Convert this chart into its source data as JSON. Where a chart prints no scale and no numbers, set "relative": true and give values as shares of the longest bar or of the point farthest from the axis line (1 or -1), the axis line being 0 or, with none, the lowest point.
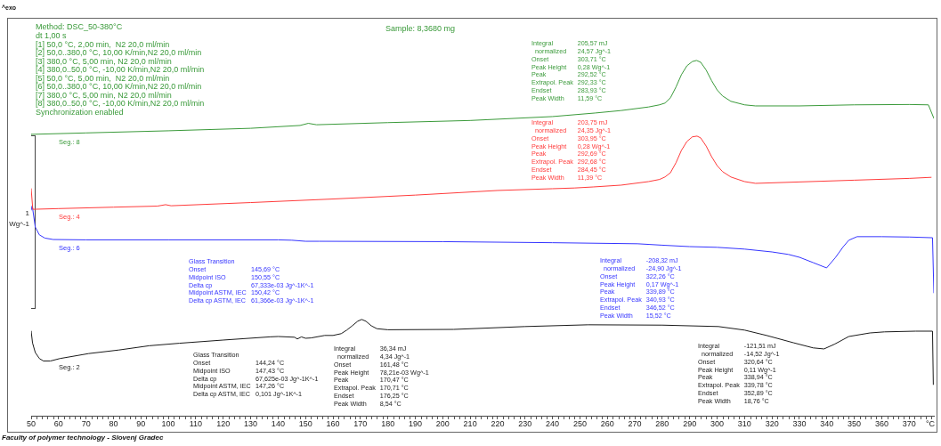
{
  "chart_data": {
    "type": "line",
    "relative": true,
    "title": "Sample: 8,3680 mg",
    "subtitle": "Method: DSC_50-380°C\ndt 1,00 s\n[1] 50,0 °C, 2,00 min,  N2 20,0 ml/min\n[2] 50,0..380,0 °C, 10,00 K/min,N2 20,0 ml/min\n[3] 380,0 °C, 5,00 min, N2 20,0 ml/min\n[4] 380,0..50,0 °C, -10,00 K/min,N2 20,0 ml/min\n[5] 50,0 °C, 5,00 min,  N2 20,0 ml/min\n[6] 50,0..380,0 °C, 10,00 K/min,N2 20,0 ml/min\n[7] 380,0 °C, 5,00 min, N2 20,0 ml/min\n[8] 380,0..50,0 °C, -10,00 K/min,N2 20,0 ml/min\nSynchronization enabled",
    "ylabel": "1\nWg^-1",
    "xlabel": "°C",
    "xlim": [
      50,
      379
    ],
    "xticks": [
      50,
      {
        "value": 52,
        "label": null
      },
      {
        "value": 54,
        "label": null
      },
      {
        "value": 56,
        "label": null
      },
      {
        "value": 58,
        "label": null
      },
      60,
      {
        "value": 62,
        "label": null
      },
      {
        "value": 64,
        "label": null
      },
      {
        "value": 66,
        "label": null
      },
      {
        "value": 68,
        "label": null
      },
      70,
      {
        "value": 72,
        "label": null
      },
      {
        "value": 74,
        "label": null
      },
      {
        "value": 76,
        "label": null
      },
      {
        "value": 78,
        "label": null
      },
      80,
      {
        "value": 82,
        "label": null
      },
      {
        "value": 84,
        "label": null
      },
      {
        "value": 86,
        "label": null
      },
      {
        "value": 88,
        "label": null
      },
      90,
      {
        "value": 92,
        "label": null
      },
      {
        "value": 94,
        "label": null
      },
      {
        "value": 96,
        "label": null
      },
      {
        "value": 98,
        "label": null
      },
      100,
      {
        "value": 102,
        "label": null
      },
      {
        "value": 104,
        "label": null
      },
      {
        "value": 106,
        "label": null
      },
      {
        "value": 108,
        "label": null
      },
      110,
      {
        "value": 112,
        "label": null
      },
      {
        "value": 114,
        "label": null
      },
      {
        "value": 116,
        "label": null
      },
      {
        "value": 118,
        "label": null
      },
      120,
      {
        "value": 122,
        "label": null
      },
      {
        "value": 124,
        "label": null
      },
      {
        "value": 126,
        "label": null
      },
      {
        "value": 128,
        "label": null
      },
      130,
      {
        "value": 132,
        "label": null
      },
      {
        "value": 134,
        "label": null
      },
      {
        "value": 136,
        "label": null
      },
      {
        "value": 138,
        "label": null
      },
      140,
      {
        "value": 142,
        "label": null
      },
      {
        "value": 144,
        "label": null
      },
      {
        "value": 146,
        "label": null
      },
      {
        "value": 148,
        "label": null
      },
      150,
      {
        "value": 152,
        "label": null
      },
      {
        "value": 154,
        "label": null
      },
      {
        "value": 156,
        "label": null
      },
      {
        "value": 158,
        "label": null
      },
      160,
      {
        "value": 162,
        "label": null
      },
      {
        "value": 164,
        "label": null
      },
      {
        "value": 166,
        "label": null
      },
      {
        "value": 168,
        "label": null
      },
      170,
      {
        "value": 172,
        "label": null
      },
      {
        "value": 174,
        "label": null
      },
      {
        "value": 176,
        "label": null
      },
      {
        "value": 178,
        "label": null
      },
      180,
      {
        "value": 182,
        "label": null
      },
      {
        "value": 184,
        "label": null
      },
      {
        "value": 186,
        "label": null
      },
      {
        "value": 188,
        "label": null
      },
      190,
      {
        "value": 192,
        "label": null
      },
      {
        "value": 194,
        "label": null
      },
      {
        "value": 196,
        "label": null
      },
      {
        "value": 198,
        "label": null
      },
      200,
      {
        "value": 202,
        "label": null
      },
      {
        "value": 204,
        "label": null
      },
      {
        "value": 206,
        "label": null
      },
      {
        "value": 208,
        "label": null
      },
      210,
      {
        "value": 212,
        "label": null
      },
      {
        "value": 214,
        "label": null
      },
      {
        "value": 216,
        "label": null
      },
      {
        "value": 218,
        "label": null
      },
      220,
      {
        "value": 222,
        "label": null
      },
      {
        "value": 224,
        "label": null
      },
      {
        "value": 226,
        "label": null
      },
      {
        "value": 228,
        "label": null
      },
      230,
      {
        "value": 232,
        "label": null
      },
      {
        "value": 234,
        "label": null
      },
      {
        "value": 236,
        "label": null
      },
      {
        "value": 238,
        "label": null
      },
      240,
      {
        "value": 242,
        "label": null
      },
      {
        "value": 244,
        "label": null
      },
      {
        "value": 246,
        "label": null
      },
      {
        "value": 248,
        "label": null
      },
      250,
      {
        "value": 252,
        "label": null
      },
      {
        "value": 254,
        "label": null
      },
      {
        "value": 256,
        "label": null
      },
      {
        "value": 258,
        "label": null
      },
      260,
      {
        "value": 262,
        "label": null
      },
      {
        "value": 264,
        "label": null
      },
      {
        "value": 266,
        "label": null
      },
      {
        "value": 268,
        "label": null
      },
      270,
      {
        "value": 272,
        "label": null
      },
      {
        "value": 274,
        "label": null
      },
      {
        "value": 276,
        "label": null
      },
      {
        "value": 278,
        "label": null
      },
      280,
      {
        "value": 282,
        "label": null
      },
      {
        "value": 284,
        "label": null
      },
      {
        "value": 286,
        "label": null
      },
      {
        "value": 288,
        "label": null
      },
      290,
      {
        "value": 292,
        "label": null
      },
      {
        "value": 294,
        "label": null
      },
      {
        "value": 296,
        "label": null
      },
      {
        "value": 298,
        "label": null
      },
      300,
      {
        "value": 302,
        "label": null
      },
      {
        "value": 304,
        "label": null
      },
      {
        "value": 306,
        "label": null
      },
      {
        "value": 308,
        "label": null
      },
      310,
      {
        "value": 312,
        "label": null
      },
      {
        "value": 314,
        "label": null
      },
      {
        "value": 316,
        "label": null
      },
      {
        "value": 318,
        "label": null
      },
      320,
      {
        "value": 322,
        "label": null
      },
      {
        "value": 324,
        "label": null
      },
      {
        "value": 326,
        "label": null
      },
      {
        "value": 328,
        "label": null
      },
      330,
      {
        "value": 332,
        "label": null
      },
      {
        "value": 334,
        "label": null
      },
      {
        "value": 336,
        "label": null
      },
      {
        "value": 338,
        "label": null
      },
      340,
      {
        "value": 342,
        "label": null
      },
      {
        "value": 344,
        "label": null
      },
      {
        "value": 346,
        "label": null
      },
      {
        "value": 348,
        "label": null
      },
      350,
      {
        "value": 352,
        "label": null
      },
      {
        "value": 354,
        "label": null
      },
      {
        "value": 356,
        "label": null
      },
      {
        "value": 358,
        "label": null
      },
      360,
      {
        "value": 362,
        "label": null
      },
      {
        "value": 364,
        "label": null
      },
      {
        "value": 366,
        "label": null
      },
      {
        "value": 368,
        "label": null
      },
      370,
      {
        "value": 372,
        "label": null
      },
      {
        "value": 374,
        "label": null
      },
      {
        "value": 376,
        "label": null
      },
      {
        "value": 378,
        "label": null
      }
    ],
    "series": [
      {
        "name": "Seg.: 8",
        "color": "#3a9a3a",
        "x": [
          50,
          70,
          100,
          130,
          148,
          151,
          154,
          180,
          210,
          240,
          255.5,
          265,
          275,
          279,
          281,
          283,
          285,
          287,
          289,
          291,
          292.52,
          294,
          296,
          298,
          300,
          302,
          305,
          310,
          314,
          330,
          350,
          370,
          377,
          379
        ],
        "values": [
          0.792,
          0.796,
          0.802,
          0.809,
          0.817,
          0.823,
          0.819,
          0.825,
          0.831,
          0.842,
          0.852,
          0.859,
          0.869,
          0.875,
          0.88,
          0.895,
          0.925,
          0.96,
          0.985,
          0.997,
          1,
          0.995,
          0.973,
          0.943,
          0.917,
          0.9,
          0.885,
          0.875,
          0.872,
          0.872,
          0.875,
          0.876,
          0.875,
          0.837
        ]
      },
      {
        "name": "Seg.: 4",
        "color": "#ff3b3b",
        "x": [
          50,
          50.6,
          60,
          80,
          96,
          99,
          101,
          130,
          160,
          190,
          220,
          240,
          248,
          255,
          265,
          275,
          279,
          281,
          283,
          285,
          287,
          289,
          291,
          292.69,
          294,
          296,
          298,
          300,
          302,
          305,
          310,
          314,
          330,
          350,
          370,
          378
        ],
        "values": [
          0.639,
          0.581,
          0.583,
          0.587,
          0.59,
          0.594,
          0.591,
          0.6,
          0.61,
          0.621,
          0.634,
          0.639,
          0.641,
          0.644,
          0.649,
          0.659,
          0.665,
          0.672,
          0.684,
          0.712,
          0.747,
          0.772,
          0.785,
          0.787,
          0.782,
          0.759,
          0.729,
          0.704,
          0.687,
          0.672,
          0.659,
          0.654,
          0.658,
          0.663,
          0.668,
          0.671
        ]
      },
      {
        "name": "Seg.: 6",
        "color": "#3434ff",
        "x": [
          50,
          50.4,
          51.5,
          53,
          55,
          58,
          70,
          100,
          140,
          145,
          150,
          155,
          200,
          240,
          271,
          280,
          290,
          300,
          310,
          320,
          326,
          330,
          335,
          339.89,
          343,
          346,
          348,
          351,
          360,
          370,
          378.5,
          379
        ],
        "values": [
          0.579,
          0.591,
          0.531,
          0.509,
          0.5,
          0.496,
          0.495,
          0.495,
          0.495,
          0.494,
          0.491,
          0.491,
          0.49,
          0.487,
          0.484,
          0.48,
          0.476,
          0.474,
          0.469,
          0.461,
          0.454,
          0.446,
          0.431,
          0.416,
          0.444,
          0.476,
          0.494,
          0.504,
          0.504,
          0.503,
          0.501,
          0.346
        ]
      },
      {
        "name": "Seg.: 2",
        "color": "#1a1a1a",
        "x": [
          50,
          50.5,
          51.5,
          53,
          54.5,
          57,
          60.5,
          71,
          82,
          93,
          104,
          120,
          137,
          140,
          146,
          147,
          148.5,
          150,
          152,
          157,
          160,
          163,
          165,
          167,
          169,
          170.47,
          172,
          174,
          176,
          180,
          204,
          230,
          253,
          280,
          300.5,
          310,
          318,
          328,
          335,
          338.94,
          342.7,
          348,
          355.7,
          361,
          372.3,
          378.5,
          378.8
        ],
        "values": [
          0.238,
          0.205,
          0.178,
          0.161,
          0.154,
          0.154,
          0.161,
          0.175,
          0.185,
          0.197,
          0.204,
          0.213,
          0.222,
          0.223,
          0.221,
          0.216,
          0.222,
          0.218,
          0.219,
          0.226,
          0.226,
          0.231,
          0.241,
          0.253,
          0.266,
          0.271,
          0.266,
          0.253,
          0.245,
          0.242,
          0.243,
          0.251,
          0.256,
          0.255,
          0.251,
          0.241,
          0.226,
          0.205,
          0.191,
          0.188,
          0.201,
          0.223,
          0.233,
          0.236,
          0.238,
          0.238,
          0.088
        ]
      }
    ],
    "annotations": [
      "^exo",
      "Faculty of polymer technology - Slovenj Gradec",
      "Integral",
      "205,57 mJ",
      "  normalized",
      "24,57 Jg^-1",
      "Onset",
      "303,71 °C",
      "Peak Height",
      "0,28 Wg^-1",
      "Peak",
      "292,52 °C",
      "Extrapol. Peak",
      "292,33 °C",
      "Endset",
      "283,93 °C",
      "Peak Width",
      "11,59 °C",
      "Integral",
      "203,75 mJ",
      "  normalized",
      "24,35 Jg^-1",
      "Onset",
      "303,95 °C",
      "Peak Height",
      "0,28 Wg^-1",
      "Peak",
      "292,69 °C",
      "Extrapol. Peak",
      "292,68 °C",
      "Endset",
      "284,45 °C",
      "Peak Width",
      "11,39 °C",
      "Glass Transition",
      "Onset",
      "145,69 °C",
      "Midpoint ISO",
      "150,55 °C",
      "Delta cp",
      "67,333e-03 Jg^-1K^-1",
      "Midpoint ASTM, IEC",
      "150,42 °C",
      "Delta cp ASTM, IEC",
      "61,366e-03 Jg^-1K^-1",
      "Integral",
      "-208,32 mJ",
      "  normalized",
      "-24,90 Jg^-1",
      "Onset",
      "322,26 °C",
      "Peak Height",
      "0,17 Wg^-1",
      "Peak",
      "339,89 °C",
      "Extrapol. Peak",
      "340,93 °C",
      "Endset",
      "346,52 °C",
      "Peak Width",
      "15,52 °C",
      "Glass Transition",
      "Onset",
      "144,24 °C",
      "Midpoint ISO",
      "147,43 °C",
      "Delta cp",
      "67,625e-03 Jg^-1K^-1",
      "Midpoint ASTM, IEC",
      "147,26 °C",
      "Delta cp ASTM, IEC",
      "0,101 Jg^-1K^-1",
      "Integral",
      "36,34 mJ",
      "  normalized",
      "4,34 Jg^-1",
      "Onset",
      "161,48 °C",
      "Peak Height",
      "78,21e-03 Wg^-1",
      "Peak",
      "170,47 °C",
      "Extrapol. Peak",
      "170,71 °C",
      "Endset",
      "176,25 °C",
      "Peak Width",
      "8,54 °C",
      "Integral",
      "-121,51 mJ",
      "  normalized",
      "-14,52 Jg^-1",
      "Onset",
      "320,64 °C",
      "Peak Height",
      "0,11 Wg^-1",
      "Peak",
      "338,94 °C",
      "Extrapol. Peak",
      "339,78 °C",
      "Endset",
      "352,89 °C",
      "Peak Width",
      "18,76 °C"
    ]
  }
}
